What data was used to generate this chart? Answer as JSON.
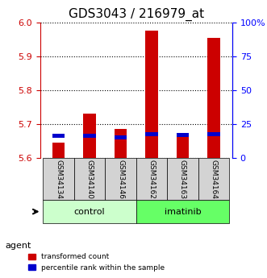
{
  "title": "GDS3043 / 216979_at",
  "samples": [
    "GSM34134",
    "GSM34140",
    "GSM34146",
    "GSM34162",
    "GSM34163",
    "GSM34164"
  ],
  "red_values": [
    5.645,
    5.73,
    5.685,
    5.975,
    5.665,
    5.955
  ],
  "blue_values": [
    5.665,
    5.665,
    5.66,
    5.67,
    5.668,
    5.67
  ],
  "red_color": "#cc0000",
  "blue_color": "#0000cc",
  "ylim_min": 5.6,
  "ylim_max": 6.0,
  "yticks_left": [
    5.6,
    5.7,
    5.8,
    5.9,
    6.0
  ],
  "yticks_right": [
    0,
    25,
    50,
    75,
    100
  ],
  "groups": [
    {
      "label": "control",
      "start": 0,
      "end": 3,
      "color": "#ccffcc"
    },
    {
      "label": "imatinib",
      "start": 3,
      "end": 6,
      "color": "#66ff66"
    }
  ],
  "agent_label": "agent",
  "legend_red": "transformed count",
  "legend_blue": "percentile rank within the sample",
  "bar_width": 0.4,
  "bar_bottom": 5.6,
  "title_fontsize": 11,
  "tick_fontsize": 8,
  "label_fontsize": 8
}
